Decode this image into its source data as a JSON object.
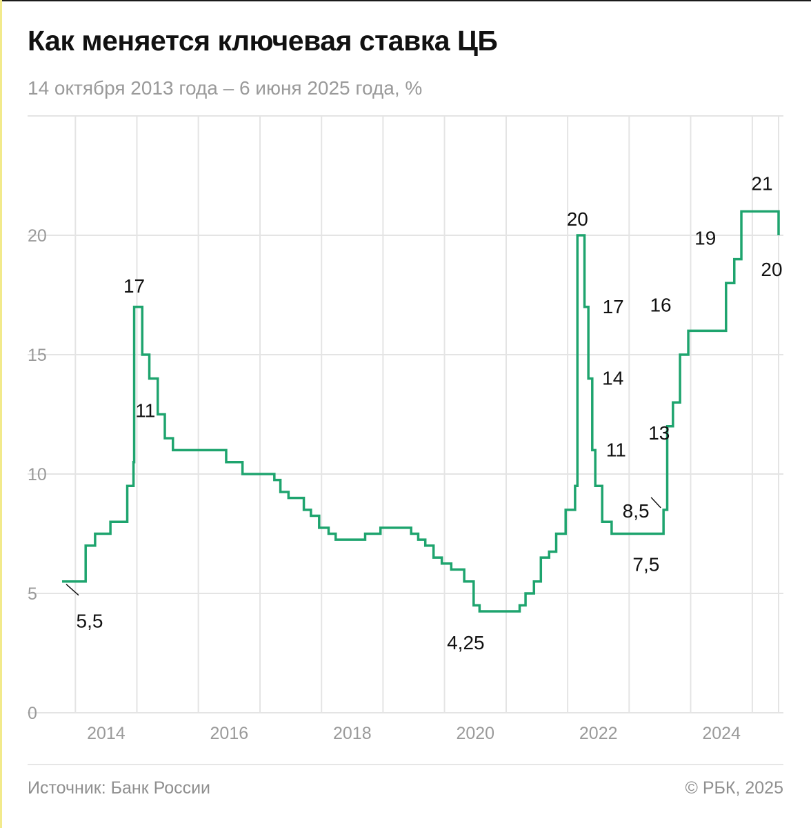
{
  "title": "Как меняется ключевая ставка ЦБ",
  "subtitle": "14 октября 2013 года – 6 июня 2025 года, %",
  "footer": {
    "source": "Источник: Банк России",
    "copyright": "© РБК, 2025"
  },
  "colors": {
    "line": "#1ea46e",
    "grid": "#e4e4e4",
    "tick": "#9a9a9a",
    "annotation": "#111111"
  },
  "chart_data": {
    "type": "line",
    "step": true,
    "title": "Как меняется ключевая ставка ЦБ",
    "xlabel": "",
    "ylabel": "",
    "xlim": [
      "2013-10-14",
      "2025-06-06"
    ],
    "ylim": [
      0,
      25
    ],
    "x_ticks": [
      "2014",
      "2016",
      "2018",
      "2020",
      "2022",
      "2024"
    ],
    "y_ticks": [
      0,
      5,
      10,
      15,
      20
    ],
    "grid": true,
    "series": [
      {
        "name": "",
        "x": [
          "2013-10-14",
          "2014-03-03",
          "2014-04-28",
          "2014-07-28",
          "2014-11-05",
          "2014-12-12",
          "2014-12-16",
          "2015-02-02",
          "2015-03-16",
          "2015-05-05",
          "2015-06-16",
          "2015-08-03",
          "2016-06-14",
          "2016-09-19",
          "2017-03-27",
          "2017-05-02",
          "2017-06-19",
          "2017-09-18",
          "2017-10-30",
          "2017-12-18",
          "2018-02-12",
          "2018-03-26",
          "2018-09-17",
          "2018-12-17",
          "2019-06-17",
          "2019-07-29",
          "2019-09-09",
          "2019-10-28",
          "2019-12-16",
          "2020-02-10",
          "2020-04-27",
          "2020-06-22",
          "2020-07-27",
          "2021-03-22",
          "2021-04-26",
          "2021-06-15",
          "2021-07-26",
          "2021-09-13",
          "2021-10-25",
          "2021-12-20",
          "2022-02-14",
          "2022-02-28",
          "2022-04-11",
          "2022-05-04",
          "2022-05-27",
          "2022-06-14",
          "2022-07-25",
          "2022-09-19",
          "2023-07-24",
          "2023-08-15",
          "2023-09-18",
          "2023-10-30",
          "2023-12-18",
          "2024-07-29",
          "2024-09-16",
          "2024-10-28",
          "2025-06-06"
        ],
        "values": [
          5.5,
          7,
          7.5,
          8,
          9.5,
          10.5,
          17,
          15,
          14,
          12.5,
          11.5,
          11,
          10.5,
          10,
          9.75,
          9.25,
          9,
          8.5,
          8.25,
          7.75,
          7.5,
          7.25,
          7.5,
          7.75,
          7.5,
          7.25,
          7,
          6.5,
          6.25,
          6,
          5.5,
          4.5,
          4.25,
          4.5,
          5,
          5.5,
          6.5,
          6.75,
          7.5,
          8.5,
          9.5,
          20,
          17,
          14,
          11,
          9.5,
          8,
          7.5,
          8.5,
          12,
          13,
          15,
          16,
          18,
          19,
          21,
          20
        ]
      }
    ],
    "annotations": [
      {
        "label": "5,5",
        "value": 5.5,
        "date": "2013-10-14"
      },
      {
        "label": "17",
        "value": 17,
        "date": "2014-12-16"
      },
      {
        "label": "11",
        "value": 11,
        "date": "2015-08-03"
      },
      {
        "label": "4,25",
        "value": 4.25,
        "date": "2020-07-27"
      },
      {
        "label": "20",
        "value": 20,
        "date": "2022-02-28"
      },
      {
        "label": "17",
        "value": 17,
        "date": "2022-04-11"
      },
      {
        "label": "14",
        "value": 14,
        "date": "2022-05-04"
      },
      {
        "label": "11",
        "value": 11,
        "date": "2022-05-27"
      },
      {
        "label": "7,5",
        "value": 7.5,
        "date": "2022-09-19"
      },
      {
        "label": "8,5",
        "value": 8.5,
        "date": "2023-07-24"
      },
      {
        "label": "13",
        "value": 13,
        "date": "2023-09-18"
      },
      {
        "label": "16",
        "value": 16,
        "date": "2023-12-18"
      },
      {
        "label": "19",
        "value": 19,
        "date": "2024-09-16"
      },
      {
        "label": "21",
        "value": 21,
        "date": "2024-10-28"
      },
      {
        "label": "20",
        "value": 20,
        "date": "2025-06-06"
      }
    ]
  }
}
